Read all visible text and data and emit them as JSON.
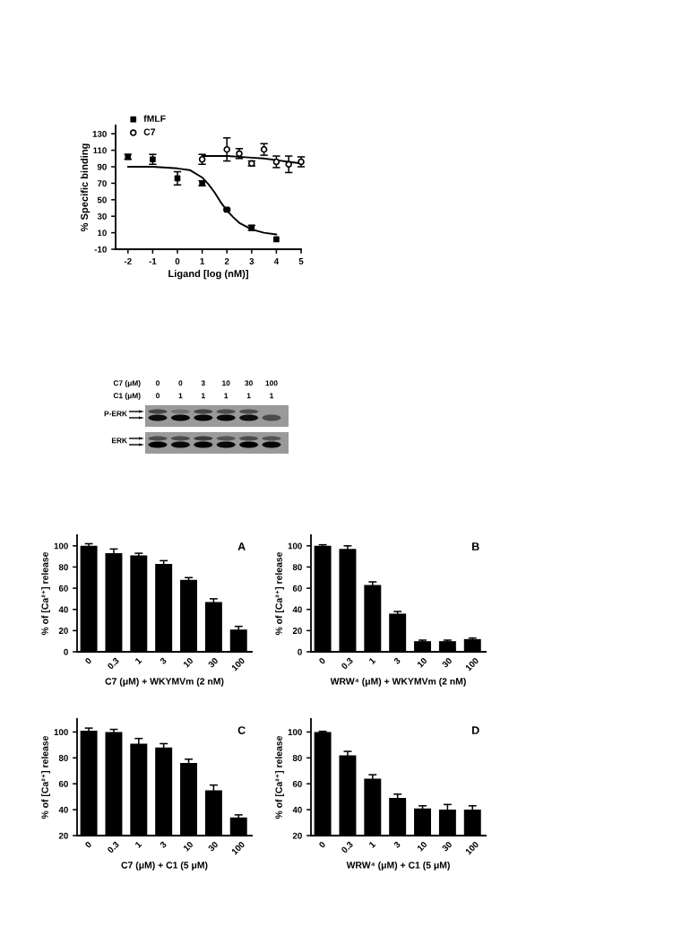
{
  "chart_data": [
    {
      "type": "scatter",
      "xlabel": "Ligand [log (nM)]",
      "ylabel": "% Specific binding",
      "xlim": [
        -2.5,
        5
      ],
      "ylim": [
        -10,
        140
      ],
      "xticks": [
        -2,
        -1,
        0,
        1,
        2,
        3,
        4,
        5
      ],
      "yticks": [
        -10,
        10,
        30,
        50,
        70,
        90,
        110,
        130
      ],
      "legend": "top left",
      "series": [
        {
          "name": "fMLF",
          "type": "scatter",
          "marker": "square",
          "color": "#000000",
          "x": [
            -2,
            -1,
            0,
            1,
            2,
            3,
            4
          ],
          "values": [
            102,
            99,
            76,
            70,
            38,
            16,
            2
          ],
          "errors": [
            3,
            6,
            8,
            3,
            1,
            3,
            null
          ]
        },
        {
          "name": "C7",
          "type": "scatter",
          "marker": "circle",
          "color": "#000000",
          "x": [
            1,
            2,
            2.5,
            3,
            3.5,
            4,
            4.5,
            5
          ],
          "values": [
            99,
            111,
            106,
            94,
            111,
            96,
            93,
            96
          ],
          "errors": [
            6,
            14,
            6,
            3,
            7,
            7,
            10,
            6
          ]
        },
        {
          "type": "line",
          "color": "#000000",
          "x": [
            -2,
            -1,
            0,
            0.5,
            1,
            1.25,
            1.5,
            1.75,
            2,
            2.25,
            2.5,
            3,
            3.5,
            4
          ],
          "values": [
            90,
            90,
            88,
            86,
            77,
            69,
            59,
            47,
            37,
            29,
            22,
            14,
            10,
            8
          ]
        },
        {
          "type": "line",
          "color": "#000000",
          "x": [
            1,
            2,
            3,
            3.5,
            4,
            4.5,
            5
          ],
          "values": [
            103,
            103,
            101,
            100,
            98,
            96,
            94
          ]
        }
      ]
    },
    {
      "type": "other",
      "annotations": [
        "C7 (μM)",
        "0",
        "0",
        "3",
        "10",
        "30",
        "100",
        "C1 (μM)",
        "0",
        "1",
        "1",
        "1",
        "1",
        "1",
        "P-ERK",
        "ERK"
      ]
    },
    {
      "type": "bar",
      "title": "A",
      "xlabel": "C7 (μM) + WKYMVm (2 nM)",
      "ylabel": "% of [Ca²⁺] release",
      "categories": [
        "0",
        "0.3",
        "1",
        "3",
        "10",
        "30",
        "100"
      ],
      "values": [
        100,
        93,
        91,
        83,
        68,
        47,
        21
      ],
      "errors": [
        2,
        4,
        2,
        3,
        2,
        3,
        3
      ],
      "color": "#000000",
      "ylim": [
        0,
        110
      ],
      "yticks": [
        0,
        20,
        40,
        60,
        80,
        100
      ]
    },
    {
      "type": "bar",
      "title": "B",
      "xlabel": "WRW⁴ (μM) + WKYMVm (2 nM)",
      "ylabel": "% of [Ca²⁺] release",
      "categories": [
        "0",
        "0.3",
        "1",
        "3",
        "10",
        "30",
        "100"
      ],
      "values": [
        100,
        97,
        63,
        36,
        10,
        10,
        12
      ],
      "errors": [
        1,
        3,
        3,
        2,
        1,
        1,
        1
      ],
      "color": "#000000",
      "ylim": [
        0,
        110
      ],
      "yticks": [
        0,
        20,
        40,
        60,
        80,
        100
      ]
    },
    {
      "type": "bar",
      "title": "C",
      "xlabel": "C7 (μM) + C1 (5 μM)",
      "ylabel": "% of [Ca²⁺] release",
      "categories": [
        "0",
        "0.3",
        "1",
        "3",
        "10",
        "30",
        "100"
      ],
      "values": [
        101,
        100,
        91,
        88,
        76,
        55,
        34
      ],
      "errors": [
        2,
        2,
        4,
        3,
        3,
        4,
        2
      ],
      "color": "#000000",
      "ylim": [
        20,
        110
      ],
      "yticks": [
        20,
        40,
        60,
        80,
        100
      ]
    },
    {
      "type": "bar",
      "title": "D",
      "xlabel": "WRW⁴ (μM) + C1 (5 μM)",
      "ylabel": "% of [Ca²⁺] release",
      "categories": [
        "0",
        "0.3",
        "1",
        "3",
        "10",
        "30",
        "100"
      ],
      "values": [
        100,
        82,
        64,
        49,
        41,
        40,
        40
      ],
      "errors": [
        0.5,
        3,
        3,
        3,
        2,
        4,
        3
      ],
      "color": "#000000",
      "ylim": [
        20,
        110
      ],
      "yticks": [
        20,
        40,
        60,
        80,
        100
      ]
    }
  ]
}
